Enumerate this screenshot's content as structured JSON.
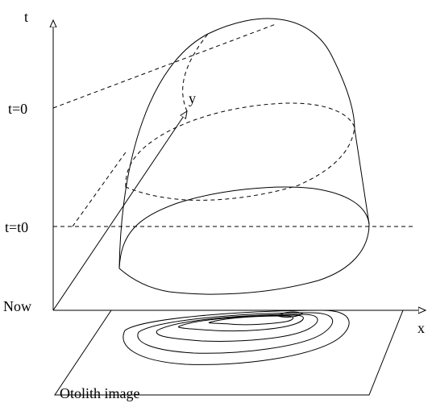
{
  "labels": {
    "t_axis": "t",
    "x_axis": "x",
    "y_axis": "y",
    "t_zero": "t=0",
    "t_t0": "t=t0",
    "now": "Now",
    "otolith": "Otolith image"
  }
}
